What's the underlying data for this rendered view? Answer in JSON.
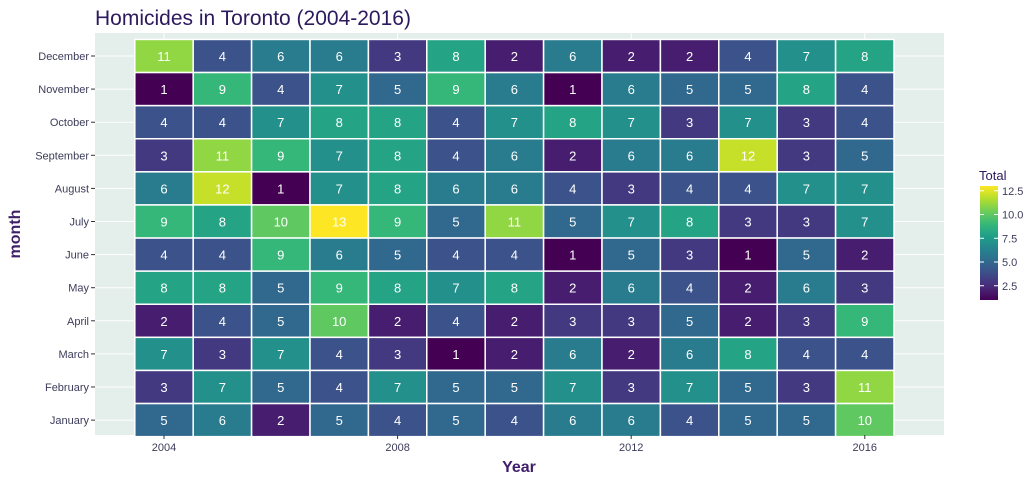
{
  "chart_data": {
    "type": "heatmap",
    "title": "Homicides in Toronto (2004-2016)",
    "xlabel": "Year",
    "ylabel": "month",
    "x": [
      2004,
      2005,
      2006,
      2007,
      2008,
      2009,
      2010,
      2011,
      2012,
      2013,
      2014,
      2015,
      2016
    ],
    "x_ticks": [
      "2004",
      "2008",
      "2012",
      "2016"
    ],
    "months": [
      "January",
      "February",
      "March",
      "April",
      "May",
      "June",
      "July",
      "August",
      "September",
      "October",
      "November",
      "December"
    ],
    "values": {
      "December": [
        11,
        4,
        6,
        6,
        3,
        8,
        2,
        6,
        2,
        2,
        4,
        7,
        8
      ],
      "November": [
        1,
        9,
        4,
        7,
        5,
        9,
        6,
        1,
        6,
        5,
        5,
        8,
        4
      ],
      "October": [
        4,
        4,
        7,
        8,
        8,
        4,
        7,
        8,
        7,
        3,
        7,
        3,
        4
      ],
      "September": [
        3,
        11,
        9,
        7,
        8,
        4,
        6,
        2,
        6,
        6,
        12,
        3,
        5
      ],
      "August": [
        6,
        12,
        1,
        7,
        8,
        6,
        6,
        4,
        3,
        4,
        4,
        7,
        7
      ],
      "July": [
        9,
        8,
        10,
        13,
        9,
        5,
        11,
        5,
        7,
        8,
        3,
        3,
        7
      ],
      "June": [
        4,
        4,
        9,
        6,
        5,
        4,
        4,
        1,
        5,
        3,
        1,
        5,
        2
      ],
      "May": [
        8,
        8,
        5,
        9,
        8,
        7,
        8,
        2,
        6,
        4,
        2,
        6,
        3
      ],
      "April": [
        2,
        4,
        5,
        10,
        2,
        4,
        2,
        3,
        3,
        5,
        2,
        3,
        9
      ],
      "March": [
        7,
        3,
        7,
        4,
        3,
        1,
        2,
        6,
        2,
        6,
        8,
        4,
        4
      ],
      "February": [
        3,
        7,
        5,
        4,
        7,
        5,
        5,
        7,
        3,
        7,
        5,
        3,
        11
      ],
      "January": [
        5,
        6,
        2,
        5,
        4,
        5,
        4,
        6,
        6,
        4,
        5,
        5,
        10
      ]
    },
    "legend": {
      "title": "Total",
      "ticks": [
        "2.5",
        "5.0",
        "7.5",
        "10.0",
        "12.5"
      ],
      "range": [
        1,
        13
      ],
      "placement": "right"
    },
    "colormap": "viridis",
    "colors": {
      "panel_background": "#e4eeea",
      "gridline": "#ffffff",
      "cell_border": "#ffffff",
      "text": "#ffffff"
    }
  }
}
